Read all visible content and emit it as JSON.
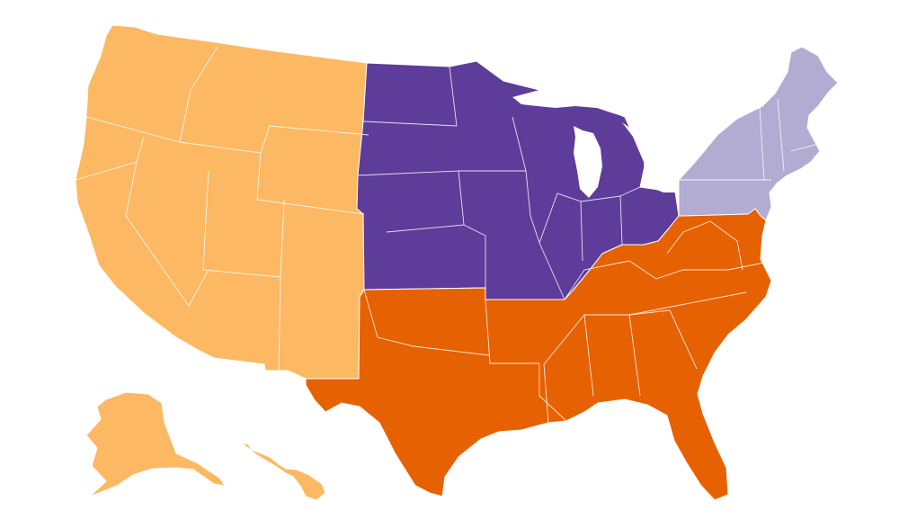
{
  "map": {
    "regions": [
      {
        "id": "west",
        "color": "#FDB863"
      },
      {
        "id": "midwest",
        "color": "#5E3C99"
      },
      {
        "id": "northeast",
        "color": "#B2ABD2"
      },
      {
        "id": "south",
        "color": "#E66101"
      }
    ],
    "insets": [
      "alaska",
      "hawaii"
    ]
  }
}
